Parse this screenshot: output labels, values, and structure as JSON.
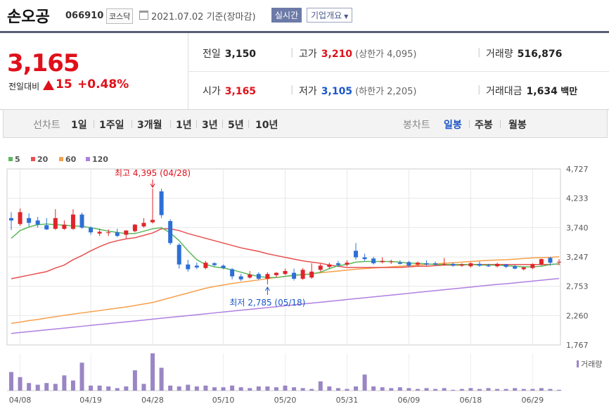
{
  "header": {
    "name": "손오공",
    "code": "066910",
    "market": "코스닥",
    "date": "2021.07.02",
    "basis": "기준(장마감)",
    "realtime_btn": "실시간",
    "overview_btn": "기업개요"
  },
  "quote": {
    "price": "3,165",
    "change_label": "전일대비",
    "change": "15",
    "change_pct": "+0.48%",
    "prev_close_label": "전일",
    "prev_close": "3,150",
    "high_label": "고가",
    "high": "3,210",
    "upper_limit": "(상한가 4,095)",
    "volume_label": "거래량",
    "volume": "516,876",
    "open_label": "시가",
    "open": "3,165",
    "low_label": "저가",
    "low": "3,105",
    "lower_limit": "(하한가 2,205)",
    "amount_label": "거래대금",
    "amount": "1,634",
    "amount_unit": "백만"
  },
  "tabs": {
    "line_label": "선차트",
    "periods": [
      "1일",
      "1주일",
      "3개월",
      "1년",
      "3년",
      "5년",
      "10년"
    ],
    "candle_label": "봉차트",
    "candles": [
      "일봉",
      "주봉",
      "월봉"
    ],
    "candle_selected": 0
  },
  "colors": {
    "up": "#e0252a",
    "down": "#2d6fd6",
    "ma5": "#5cb85c",
    "ma20": "#e8504f",
    "ma60": "#f7a04a",
    "ma120": "#b07fe0",
    "volume": "#9a86c4"
  },
  "chart_data": {
    "type": "candlestick",
    "ylim": [
      1767,
      4727
    ],
    "y_ticks": [
      "4,727",
      "4,233",
      "3,740",
      "3,247",
      "2,753",
      "2,260",
      "1,767"
    ],
    "x_ticks": [
      "04/08",
      "04/19",
      "04/28",
      "05/10",
      "05/20",
      "05/31",
      "06/09",
      "06/18",
      "06/29"
    ],
    "x_tick_index": [
      1,
      9,
      16,
      24,
      31,
      38,
      45,
      52,
      59
    ],
    "legend": [
      "5",
      "20",
      "60",
      "120"
    ],
    "high_annotation": "최고 4,395 (04/28)",
    "high_index": 16,
    "high_value": 4395,
    "low_annotation": "최저 2,785 (05/18)",
    "low_index": 29,
    "low_value": 2785,
    "volume_label": "거래량",
    "candles": [
      {
        "o": 3900,
        "h": 4000,
        "l": 3700,
        "c": 3860
      },
      {
        "o": 3800,
        "h": 4060,
        "l": 3770,
        "c": 4000
      },
      {
        "o": 3900,
        "h": 3980,
        "l": 3760,
        "c": 3820
      },
      {
        "o": 3860,
        "h": 3920,
        "l": 3740,
        "c": 3790
      },
      {
        "o": 3780,
        "h": 3900,
        "l": 3700,
        "c": 3710
      },
      {
        "o": 3720,
        "h": 4050,
        "l": 3700,
        "c": 3900
      },
      {
        "o": 3720,
        "h": 3860,
        "l": 3700,
        "c": 3790
      },
      {
        "o": 3720,
        "h": 4050,
        "l": 3700,
        "c": 3960
      },
      {
        "o": 3960,
        "h": 3990,
        "l": 3720,
        "c": 3740
      },
      {
        "o": 3740,
        "h": 3760,
        "l": 3620,
        "c": 3660
      },
      {
        "o": 3640,
        "h": 3720,
        "l": 3600,
        "c": 3670
      },
      {
        "o": 3650,
        "h": 3710,
        "l": 3600,
        "c": 3660
      },
      {
        "o": 3660,
        "h": 3720,
        "l": 3580,
        "c": 3600
      },
      {
        "o": 3620,
        "h": 3700,
        "l": 3560,
        "c": 3690
      },
      {
        "o": 3680,
        "h": 3800,
        "l": 3660,
        "c": 3790
      },
      {
        "o": 3760,
        "h": 3900,
        "l": 3740,
        "c": 3820
      },
      {
        "o": 3830,
        "h": 4395,
        "l": 3810,
        "c": 3870
      },
      {
        "o": 4350,
        "h": 4395,
        "l": 3900,
        "c": 3950
      },
      {
        "o": 3850,
        "h": 3880,
        "l": 3450,
        "c": 3480
      },
      {
        "o": 3450,
        "h": 3480,
        "l": 3050,
        "c": 3120
      },
      {
        "o": 3120,
        "h": 3200,
        "l": 3000,
        "c": 3040
      },
      {
        "o": 3100,
        "h": 3150,
        "l": 3040,
        "c": 3070
      },
      {
        "o": 3060,
        "h": 3180,
        "l": 3040,
        "c": 3150
      },
      {
        "o": 3140,
        "h": 3160,
        "l": 3090,
        "c": 3110
      },
      {
        "o": 3100,
        "h": 3120,
        "l": 3040,
        "c": 3060
      },
      {
        "o": 3040,
        "h": 3060,
        "l": 2870,
        "c": 2920
      },
      {
        "o": 2920,
        "h": 2960,
        "l": 2840,
        "c": 2870
      },
      {
        "o": 2900,
        "h": 3010,
        "l": 2880,
        "c": 2950
      },
      {
        "o": 2960,
        "h": 2990,
        "l": 2860,
        "c": 2880
      },
      {
        "o": 2880,
        "h": 2990,
        "l": 2785,
        "c": 2960
      },
      {
        "o": 2940,
        "h": 2990,
        "l": 2900,
        "c": 2980
      },
      {
        "o": 2960,
        "h": 3050,
        "l": 2940,
        "c": 3010
      },
      {
        "o": 2980,
        "h": 3050,
        "l": 2850,
        "c": 2880
      },
      {
        "o": 2880,
        "h": 3060,
        "l": 2860,
        "c": 3030
      },
      {
        "o": 2900,
        "h": 3140,
        "l": 2880,
        "c": 3000
      },
      {
        "o": 3030,
        "h": 3130,
        "l": 3000,
        "c": 3100
      },
      {
        "o": 3080,
        "h": 3150,
        "l": 3050,
        "c": 3120
      },
      {
        "o": 3140,
        "h": 3180,
        "l": 3080,
        "c": 3110
      },
      {
        "o": 3120,
        "h": 3190,
        "l": 3090,
        "c": 3150
      },
      {
        "o": 3350,
        "h": 3480,
        "l": 3200,
        "c": 3240
      },
      {
        "o": 3240,
        "h": 3300,
        "l": 3180,
        "c": 3210
      },
      {
        "o": 3220,
        "h": 3250,
        "l": 3120,
        "c": 3140
      },
      {
        "o": 3160,
        "h": 3240,
        "l": 3140,
        "c": 3180
      },
      {
        "o": 3160,
        "h": 3200,
        "l": 3130,
        "c": 3170
      },
      {
        "o": 3150,
        "h": 3190,
        "l": 3120,
        "c": 3130
      },
      {
        "o": 3160,
        "h": 3180,
        "l": 3080,
        "c": 3100
      },
      {
        "o": 3120,
        "h": 3170,
        "l": 3100,
        "c": 3150
      },
      {
        "o": 3140,
        "h": 3190,
        "l": 3100,
        "c": 3120
      },
      {
        "o": 3140,
        "h": 3170,
        "l": 3100,
        "c": 3120
      },
      {
        "o": 3120,
        "h": 3230,
        "l": 3100,
        "c": 3130
      },
      {
        "o": 3130,
        "h": 3150,
        "l": 3080,
        "c": 3100
      },
      {
        "o": 3100,
        "h": 3140,
        "l": 3080,
        "c": 3120
      },
      {
        "o": 3090,
        "h": 3160,
        "l": 3070,
        "c": 3140
      },
      {
        "o": 3130,
        "h": 3170,
        "l": 3080,
        "c": 3100
      },
      {
        "o": 3100,
        "h": 3130,
        "l": 3080,
        "c": 3090
      },
      {
        "o": 3090,
        "h": 3150,
        "l": 3070,
        "c": 3130
      },
      {
        "o": 3120,
        "h": 3130,
        "l": 3060,
        "c": 3080
      },
      {
        "o": 3090,
        "h": 3110,
        "l": 3040,
        "c": 3050
      },
      {
        "o": 3040,
        "h": 3080,
        "l": 3020,
        "c": 3070
      },
      {
        "o": 3060,
        "h": 3140,
        "l": 3040,
        "c": 3120
      },
      {
        "o": 3120,
        "h": 3220,
        "l": 3100,
        "c": 3210
      },
      {
        "o": 3230,
        "h": 3250,
        "l": 3100,
        "c": 3150
      },
      {
        "o": 3165,
        "h": 3210,
        "l": 3105,
        "c": 3165
      }
    ],
    "volume": [
      22,
      16,
      9,
      7,
      9,
      8,
      18,
      12,
      33,
      6,
      6,
      5,
      3,
      5,
      24,
      8,
      44,
      27,
      6,
      5,
      7,
      5,
      6,
      4,
      4,
      6,
      4,
      3,
      5,
      5,
      4,
      6,
      4,
      3,
      2,
      11,
      5,
      3,
      2,
      5,
      19,
      5,
      4,
      3,
      4,
      3,
      2,
      3,
      2,
      3,
      1,
      2,
      3,
      2,
      3,
      2,
      2,
      3,
      2,
      2,
      3,
      2,
      1
    ],
    "ma5": [
      3560,
      3690,
      3750,
      3790,
      3800,
      3790,
      3780,
      3770,
      3760,
      3740,
      3710,
      3680,
      3660,
      3640,
      3640,
      3680,
      3720,
      3740,
      3650,
      3520,
      3350,
      3200,
      3120,
      3080,
      3060,
      3030,
      2990,
      2950,
      2920,
      2900,
      2900,
      2920,
      2940,
      2950,
      2960,
      2990,
      3050,
      3100,
      3120,
      3160,
      3170,
      3170,
      3170,
      3170,
      3160,
      3140,
      3140,
      3130,
      3120,
      3120,
      3120,
      3120,
      3120,
      3110,
      3110,
      3110,
      3100,
      3090,
      3080,
      3080,
      3090,
      3120,
      3130
    ],
    "ma20": [
      2880,
      2910,
      2940,
      2970,
      3000,
      3060,
      3110,
      3200,
      3270,
      3350,
      3420,
      3480,
      3520,
      3550,
      3570,
      3610,
      3650,
      3720,
      3720,
      3690,
      3640,
      3600,
      3560,
      3520,
      3480,
      3440,
      3400,
      3370,
      3340,
      3300,
      3270,
      3240,
      3210,
      3180,
      3160,
      3140,
      3110,
      3090,
      3070,
      3070,
      3070,
      3070,
      3070,
      3070,
      3070,
      3080,
      3090,
      3090,
      3100,
      3110,
      3110,
      3110,
      3120,
      3120,
      3120,
      3120,
      3120,
      3120,
      3120,
      3120,
      3120,
      3120,
      3130
    ],
    "ma60": [
      2130,
      2150,
      2175,
      2195,
      2220,
      2240,
      2265,
      2285,
      2305,
      2325,
      2345,
      2365,
      2385,
      2405,
      2430,
      2455,
      2480,
      2520,
      2560,
      2600,
      2640,
      2680,
      2720,
      2750,
      2775,
      2800,
      2820,
      2840,
      2860,
      2880,
      2900,
      2920,
      2935,
      2950,
      2965,
      2980,
      2995,
      3010,
      3025,
      3040,
      3050,
      3060,
      3070,
      3080,
      3090,
      3100,
      3110,
      3120,
      3130,
      3140,
      3150,
      3160,
      3170,
      3180,
      3190,
      3195,
      3200,
      3210,
      3220,
      3230,
      3235,
      3240,
      3250
    ],
    "ma120": [
      1960,
      1975,
      1990,
      2005,
      2020,
      2035,
      2050,
      2065,
      2080,
      2095,
      2110,
      2125,
      2140,
      2155,
      2170,
      2185,
      2200,
      2215,
      2230,
      2245,
      2260,
      2275,
      2290,
      2305,
      2320,
      2335,
      2350,
      2365,
      2380,
      2395,
      2410,
      2425,
      2440,
      2455,
      2470,
      2485,
      2500,
      2515,
      2530,
      2545,
      2560,
      2575,
      2590,
      2605,
      2620,
      2635,
      2650,
      2665,
      2680,
      2695,
      2710,
      2725,
      2740,
      2755,
      2770,
      2785,
      2795,
      2810,
      2825,
      2840,
      2855,
      2870,
      2885
    ]
  }
}
